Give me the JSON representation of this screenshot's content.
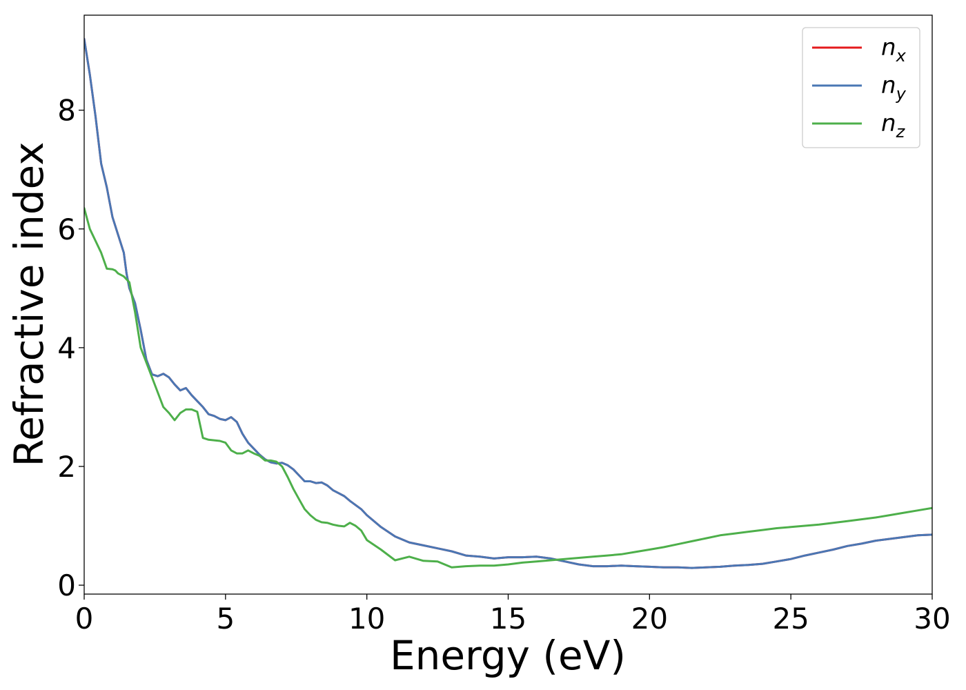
{
  "chart_data": {
    "type": "line",
    "title": "",
    "xlabel": "Energy (eV)",
    "ylabel": "Refractive index",
    "xlim": [
      0,
      30
    ],
    "ylim": [
      -0.15,
      9.6
    ],
    "xticks": [
      0,
      5,
      10,
      15,
      20,
      25,
      30
    ],
    "yticks": [
      0,
      2,
      4,
      6,
      8
    ],
    "grid": false,
    "legend_position": "top-right",
    "series": [
      {
        "name": "n_x",
        "label_main": "n",
        "label_sub": "x",
        "color": "#e41a1c",
        "points": [
          [
            0,
            9.2
          ],
          [
            0.2,
            8.6
          ],
          [
            0.4,
            7.9
          ],
          [
            0.6,
            7.1
          ],
          [
            0.8,
            6.7
          ],
          [
            1.0,
            6.2
          ],
          [
            1.2,
            5.9
          ],
          [
            1.4,
            5.6
          ],
          [
            1.5,
            5.25
          ],
          [
            1.6,
            5.0
          ],
          [
            1.8,
            4.75
          ],
          [
            2.0,
            4.3
          ],
          [
            2.2,
            3.8
          ],
          [
            2.4,
            3.55
          ],
          [
            2.6,
            3.52
          ],
          [
            2.8,
            3.56
          ],
          [
            3.0,
            3.5
          ],
          [
            3.2,
            3.38
          ],
          [
            3.4,
            3.28
          ],
          [
            3.6,
            3.32
          ],
          [
            3.8,
            3.2
          ],
          [
            4.0,
            3.1
          ],
          [
            4.2,
            3.0
          ],
          [
            4.4,
            2.88
          ],
          [
            4.6,
            2.85
          ],
          [
            4.8,
            2.8
          ],
          [
            5.0,
            2.78
          ],
          [
            5.2,
            2.83
          ],
          [
            5.4,
            2.75
          ],
          [
            5.6,
            2.55
          ],
          [
            5.8,
            2.4
          ],
          [
            6.0,
            2.3
          ],
          [
            6.2,
            2.2
          ],
          [
            6.4,
            2.12
          ],
          [
            6.6,
            2.07
          ],
          [
            6.8,
            2.05
          ],
          [
            7.0,
            2.06
          ],
          [
            7.2,
            2.02
          ],
          [
            7.4,
            1.95
          ],
          [
            7.6,
            1.85
          ],
          [
            7.8,
            1.75
          ],
          [
            8.0,
            1.75
          ],
          [
            8.2,
            1.72
          ],
          [
            8.4,
            1.73
          ],
          [
            8.6,
            1.68
          ],
          [
            8.8,
            1.6
          ],
          [
            9.0,
            1.55
          ],
          [
            9.2,
            1.5
          ],
          [
            9.4,
            1.42
          ],
          [
            9.6,
            1.35
          ],
          [
            9.8,
            1.28
          ],
          [
            10.0,
            1.18
          ],
          [
            10.5,
            0.98
          ],
          [
            11.0,
            0.82
          ],
          [
            11.5,
            0.72
          ],
          [
            12.0,
            0.67
          ],
          [
            12.5,
            0.62
          ],
          [
            13.0,
            0.57
          ],
          [
            13.5,
            0.5
          ],
          [
            14.0,
            0.48
          ],
          [
            14.5,
            0.45
          ],
          [
            15.0,
            0.47
          ],
          [
            15.5,
            0.47
          ],
          [
            16.0,
            0.48
          ],
          [
            16.5,
            0.45
          ],
          [
            17.0,
            0.4
          ],
          [
            17.5,
            0.35
          ],
          [
            18.0,
            0.32
          ],
          [
            18.5,
            0.32
          ],
          [
            19.0,
            0.33
          ],
          [
            19.5,
            0.32
          ],
          [
            20.0,
            0.31
          ],
          [
            20.5,
            0.3
          ],
          [
            21.0,
            0.3
          ],
          [
            21.5,
            0.29
          ],
          [
            22.0,
            0.3
          ],
          [
            22.5,
            0.31
          ],
          [
            23.0,
            0.33
          ],
          [
            23.5,
            0.34
          ],
          [
            24.0,
            0.36
          ],
          [
            24.5,
            0.4
          ],
          [
            25.0,
            0.44
          ],
          [
            25.5,
            0.5
          ],
          [
            26.0,
            0.55
          ],
          [
            26.5,
            0.6
          ],
          [
            27.0,
            0.66
          ],
          [
            27.5,
            0.7
          ],
          [
            28.0,
            0.75
          ],
          [
            28.5,
            0.78
          ],
          [
            29.0,
            0.81
          ],
          [
            29.5,
            0.84
          ],
          [
            30.0,
            0.85
          ]
        ]
      },
      {
        "name": "n_y",
        "label_main": "n",
        "label_sub": "y",
        "color": "#4a77b4",
        "points": [
          [
            0,
            9.2
          ],
          [
            0.2,
            8.6
          ],
          [
            0.4,
            7.9
          ],
          [
            0.6,
            7.1
          ],
          [
            0.8,
            6.7
          ],
          [
            1.0,
            6.2
          ],
          [
            1.2,
            5.9
          ],
          [
            1.4,
            5.6
          ],
          [
            1.5,
            5.25
          ],
          [
            1.6,
            5.0
          ],
          [
            1.8,
            4.75
          ],
          [
            2.0,
            4.3
          ],
          [
            2.2,
            3.8
          ],
          [
            2.4,
            3.55
          ],
          [
            2.6,
            3.52
          ],
          [
            2.8,
            3.56
          ],
          [
            3.0,
            3.5
          ],
          [
            3.2,
            3.38
          ],
          [
            3.4,
            3.28
          ],
          [
            3.6,
            3.32
          ],
          [
            3.8,
            3.2
          ],
          [
            4.0,
            3.1
          ],
          [
            4.2,
            3.0
          ],
          [
            4.4,
            2.88
          ],
          [
            4.6,
            2.85
          ],
          [
            4.8,
            2.8
          ],
          [
            5.0,
            2.78
          ],
          [
            5.2,
            2.83
          ],
          [
            5.4,
            2.75
          ],
          [
            5.6,
            2.55
          ],
          [
            5.8,
            2.4
          ],
          [
            6.0,
            2.3
          ],
          [
            6.2,
            2.2
          ],
          [
            6.4,
            2.12
          ],
          [
            6.6,
            2.07
          ],
          [
            6.8,
            2.05
          ],
          [
            7.0,
            2.06
          ],
          [
            7.2,
            2.02
          ],
          [
            7.4,
            1.95
          ],
          [
            7.6,
            1.85
          ],
          [
            7.8,
            1.75
          ],
          [
            8.0,
            1.75
          ],
          [
            8.2,
            1.72
          ],
          [
            8.4,
            1.73
          ],
          [
            8.6,
            1.68
          ],
          [
            8.8,
            1.6
          ],
          [
            9.0,
            1.55
          ],
          [
            9.2,
            1.5
          ],
          [
            9.4,
            1.42
          ],
          [
            9.6,
            1.35
          ],
          [
            9.8,
            1.28
          ],
          [
            10.0,
            1.18
          ],
          [
            10.5,
            0.98
          ],
          [
            11.0,
            0.82
          ],
          [
            11.5,
            0.72
          ],
          [
            12.0,
            0.67
          ],
          [
            12.5,
            0.62
          ],
          [
            13.0,
            0.57
          ],
          [
            13.5,
            0.5
          ],
          [
            14.0,
            0.48
          ],
          [
            14.5,
            0.45
          ],
          [
            15.0,
            0.47
          ],
          [
            15.5,
            0.47
          ],
          [
            16.0,
            0.48
          ],
          [
            16.5,
            0.45
          ],
          [
            17.0,
            0.4
          ],
          [
            17.5,
            0.35
          ],
          [
            18.0,
            0.32
          ],
          [
            18.5,
            0.32
          ],
          [
            19.0,
            0.33
          ],
          [
            19.5,
            0.32
          ],
          [
            20.0,
            0.31
          ],
          [
            20.5,
            0.3
          ],
          [
            21.0,
            0.3
          ],
          [
            21.5,
            0.29
          ],
          [
            22.0,
            0.3
          ],
          [
            22.5,
            0.31
          ],
          [
            23.0,
            0.33
          ],
          [
            23.5,
            0.34
          ],
          [
            24.0,
            0.36
          ],
          [
            24.5,
            0.4
          ],
          [
            25.0,
            0.44
          ],
          [
            25.5,
            0.5
          ],
          [
            26.0,
            0.55
          ],
          [
            26.5,
            0.6
          ],
          [
            27.0,
            0.66
          ],
          [
            27.5,
            0.7
          ],
          [
            28.0,
            0.75
          ],
          [
            28.5,
            0.78
          ],
          [
            29.0,
            0.81
          ],
          [
            29.5,
            0.84
          ],
          [
            30.0,
            0.85
          ]
        ]
      },
      {
        "name": "n_z",
        "label_main": "n",
        "label_sub": "z",
        "color": "#4daf4a",
        "points": [
          [
            0,
            6.35
          ],
          [
            0.2,
            6.0
          ],
          [
            0.4,
            5.8
          ],
          [
            0.6,
            5.6
          ],
          [
            0.8,
            5.33
          ],
          [
            1.0,
            5.32
          ],
          [
            1.1,
            5.3
          ],
          [
            1.2,
            5.25
          ],
          [
            1.4,
            5.2
          ],
          [
            1.6,
            5.1
          ],
          [
            1.8,
            4.6
          ],
          [
            2.0,
            4.0
          ],
          [
            2.2,
            3.75
          ],
          [
            2.4,
            3.5
          ],
          [
            2.6,
            3.25
          ],
          [
            2.8,
            3.0
          ],
          [
            3.0,
            2.9
          ],
          [
            3.2,
            2.78
          ],
          [
            3.4,
            2.9
          ],
          [
            3.6,
            2.96
          ],
          [
            3.8,
            2.96
          ],
          [
            4.0,
            2.92
          ],
          [
            4.2,
            2.48
          ],
          [
            4.4,
            2.45
          ],
          [
            4.6,
            2.44
          ],
          [
            4.8,
            2.43
          ],
          [
            5.0,
            2.4
          ],
          [
            5.2,
            2.27
          ],
          [
            5.4,
            2.22
          ],
          [
            5.6,
            2.22
          ],
          [
            5.8,
            2.27
          ],
          [
            6.0,
            2.22
          ],
          [
            6.2,
            2.18
          ],
          [
            6.4,
            2.1
          ],
          [
            6.6,
            2.1
          ],
          [
            6.8,
            2.08
          ],
          [
            7.0,
            2.0
          ],
          [
            7.2,
            1.82
          ],
          [
            7.4,
            1.62
          ],
          [
            7.6,
            1.45
          ],
          [
            7.8,
            1.28
          ],
          [
            8.0,
            1.18
          ],
          [
            8.2,
            1.1
          ],
          [
            8.4,
            1.06
          ],
          [
            8.6,
            1.05
          ],
          [
            8.8,
            1.02
          ],
          [
            9.0,
            1.0
          ],
          [
            9.2,
            0.99
          ],
          [
            9.4,
            1.05
          ],
          [
            9.6,
            1.0
          ],
          [
            9.8,
            0.92
          ],
          [
            10.0,
            0.76
          ],
          [
            10.5,
            0.6
          ],
          [
            11.0,
            0.42
          ],
          [
            11.5,
            0.48
          ],
          [
            12.0,
            0.41
          ],
          [
            12.5,
            0.4
          ],
          [
            13.0,
            0.3
          ],
          [
            13.5,
            0.32
          ],
          [
            14.0,
            0.33
          ],
          [
            14.5,
            0.33
          ],
          [
            15.0,
            0.35
          ],
          [
            15.5,
            0.38
          ],
          [
            16.0,
            0.4
          ],
          [
            16.5,
            0.42
          ],
          [
            17.0,
            0.44
          ],
          [
            17.5,
            0.46
          ],
          [
            18.0,
            0.48
          ],
          [
            18.5,
            0.5
          ],
          [
            19.0,
            0.52
          ],
          [
            19.5,
            0.56
          ],
          [
            20.0,
            0.6
          ],
          [
            20.5,
            0.64
          ],
          [
            21.0,
            0.69
          ],
          [
            21.5,
            0.74
          ],
          [
            22.0,
            0.79
          ],
          [
            22.5,
            0.84
          ],
          [
            23.0,
            0.87
          ],
          [
            23.5,
            0.9
          ],
          [
            24.0,
            0.93
          ],
          [
            24.5,
            0.96
          ],
          [
            25.0,
            0.98
          ],
          [
            25.5,
            1.0
          ],
          [
            26.0,
            1.02
          ],
          [
            26.5,
            1.05
          ],
          [
            27.0,
            1.08
          ],
          [
            27.5,
            1.11
          ],
          [
            28.0,
            1.14
          ],
          [
            28.5,
            1.18
          ],
          [
            29.0,
            1.22
          ],
          [
            29.5,
            1.26
          ],
          [
            30.0,
            1.3
          ]
        ]
      }
    ]
  }
}
